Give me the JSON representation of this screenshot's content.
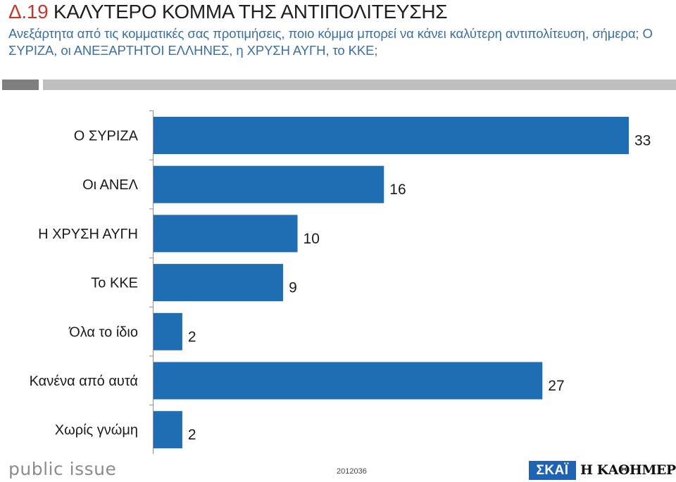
{
  "header": {
    "code": "Δ.19",
    "title": "ΚΑΛΥΤΕΡΟ ΚΟΜΜΑ ΤΗΣ ΑΝΤΙΠΟΛΙΤΕΥΣΗΣ",
    "subtitle": "Ανεξάρτητα από τις κομματικές σας προτιμήσεις, ποιο κόμμα μπορεί να κάνει καλύτερη αντιπολίτευση, σήμερα; Ο ΣΥΡΙΖΑ, οι ΑΝΕΞΑΡΤΗΤΟΙ ΕΛΛΗΝΕΣ, η ΧΡΥΣΗ ΑΥΓΗ, το ΚΚΕ;"
  },
  "chart_data": {
    "type": "bar",
    "orientation": "horizontal",
    "categories": [
      "Ο ΣΥΡΙΖΑ",
      "Οι ΑΝΕΛ",
      "Η ΧΡΥΣΗ ΑΥΓΗ",
      "Το ΚΚΕ",
      "Όλα το ίδιο",
      "Κανένα από αυτά",
      "Χωρίς γνώμη"
    ],
    "values": [
      33,
      16,
      10,
      9,
      2,
      27,
      2
    ],
    "xlim": [
      0,
      33
    ],
    "grid": false,
    "legend": "none",
    "bar_color": "#1f6eb4"
  },
  "footer": {
    "logo": "public issue",
    "code": "2012036",
    "sponsor1": "ΣΚΑΪ",
    "sponsor2": "Η ΚΑΘΗΜΕΡΙΝΗ"
  },
  "colors": {
    "accent": "#c0392b",
    "subtitle": "#3a6fa0",
    "bar": "#1f6eb4"
  }
}
